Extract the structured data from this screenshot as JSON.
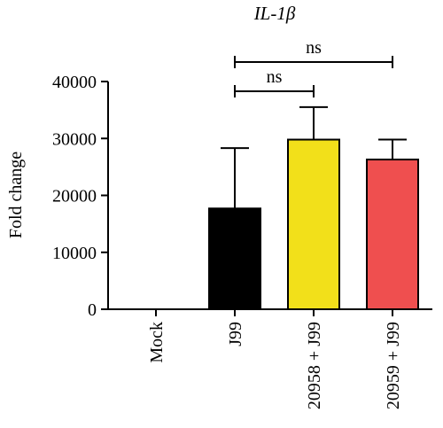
{
  "chart_data": {
    "type": "bar",
    "title": "IL-1β",
    "xlabel": "",
    "ylabel": "Fold change",
    "ylim": [
      0,
      40000
    ],
    "yticks": [
      0,
      10000,
      20000,
      30000,
      40000
    ],
    "grid": false,
    "categories": [
      "Mock",
      "J99",
      "20958 + J99",
      "20959 + J99"
    ],
    "values": [
      0,
      17700,
      29800,
      26300
    ],
    "errors_upper": [
      0,
      28300,
      35500,
      29800
    ],
    "colors": [
      "#000000",
      "#000000",
      "#f2e01a",
      "#ef4f4f"
    ],
    "significance": [
      {
        "from": 1,
        "to": 2,
        "label": "ns"
      },
      {
        "from": 1,
        "to": 3,
        "label": "ns"
      }
    ]
  }
}
